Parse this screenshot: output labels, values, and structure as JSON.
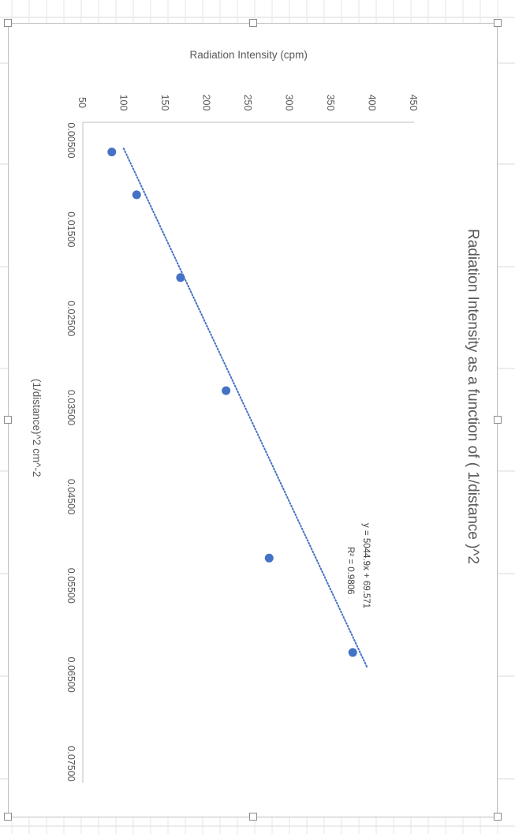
{
  "chart_data": {
    "type": "scatter",
    "title": "Radiation Intensity as a function of ( 1/distance )^2",
    "xlabel": "(1/distance)^2 cm^-2",
    "ylabel": "Radiation Intensity (cpm)",
    "xlim": [
      0.005,
      0.075
    ],
    "ylim": [
      50,
      450
    ],
    "x_ticks": [
      "0.00500",
      "0.01500",
      "0.02500",
      "0.03500",
      "0.04500",
      "0.05500",
      "0.06500",
      "0.07500"
    ],
    "y_ticks": [
      "50",
      "100",
      "150",
      "200",
      "250",
      "300",
      "350",
      "400",
      "450"
    ],
    "orientation": "rotated 90 degrees clockwise",
    "series": [
      {
        "x": [
          0.0063,
          0.0111,
          0.0204,
          0.0331,
          0.0519,
          0.0625
        ],
        "y": [
          85,
          115,
          168,
          223,
          275,
          376
        ],
        "color": "#4472c4"
      }
    ],
    "trendline": {
      "type": "linear",
      "slope": 5044.9,
      "intercept": 69.571,
      "color": "#4472c4",
      "style": "dotted",
      "equation": "y = 5044.9x + 69.571",
      "r2": "R² = 0.9806"
    },
    "grid": false,
    "legend": "none"
  }
}
